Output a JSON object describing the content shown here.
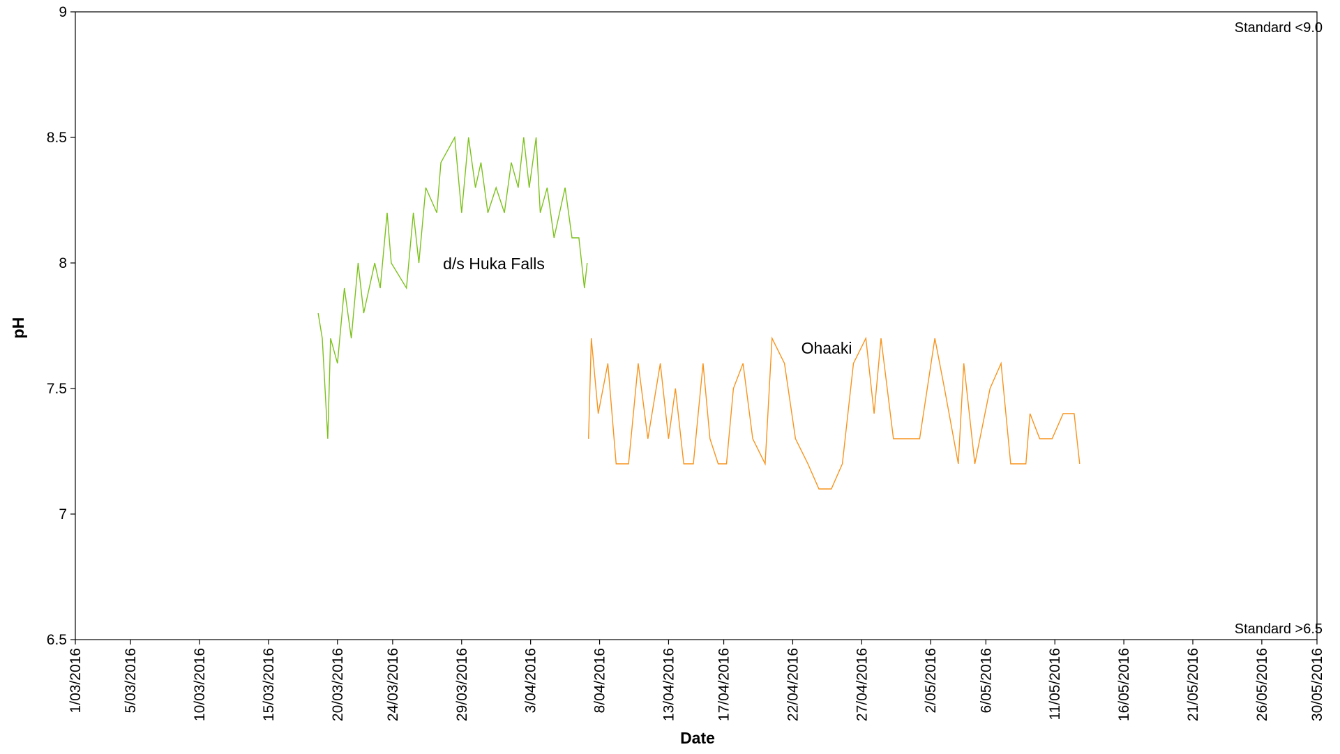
{
  "chart_data": {
    "type": "line",
    "xlabel": "Date",
    "ylabel": "pH",
    "annotations": [
      "d/s Huka Falls",
      "Ohaaki",
      "Standard <9.0",
      "Standard >6.5"
    ],
    "xlim": [
      42430,
      42520
    ],
    "xticks": [
      {
        "value": 42430,
        "label": "1/03/2016"
      },
      {
        "value": 42434,
        "label": "5/03/2016"
      },
      {
        "value": 42439,
        "label": "10/03/2016"
      },
      {
        "value": 42444,
        "label": "15/03/2016"
      },
      {
        "value": 42449,
        "label": "20/03/2016"
      },
      {
        "value": 42453,
        "label": "24/03/2016"
      },
      {
        "value": 42458,
        "label": "29/03/2016"
      },
      {
        "value": 42463,
        "label": "3/04/2016"
      },
      {
        "value": 42468,
        "label": "8/04/2016"
      },
      {
        "value": 42473,
        "label": "13/04/2016"
      },
      {
        "value": 42477,
        "label": "17/04/2016"
      },
      {
        "value": 42482,
        "label": "22/04/2016"
      },
      {
        "value": 42487,
        "label": "27/04/2016"
      },
      {
        "value": 42492,
        "label": "2/05/2016"
      },
      {
        "value": 42496,
        "label": "6/05/2016"
      },
      {
        "value": 42501,
        "label": "11/05/2016"
      },
      {
        "value": 42506,
        "label": "16/05/2016"
      },
      {
        "value": 42511,
        "label": "21/05/2016"
      },
      {
        "value": 42516,
        "label": "26/05/2016"
      },
      {
        "value": 42520,
        "label": "30/05/2016"
      }
    ],
    "ylim": [
      6.5,
      9
    ],
    "yticks": [
      6.5,
      7,
      7.5,
      8,
      8.5,
      9
    ],
    "grid": false,
    "series": [
      {
        "name": "d/s Huka Falls",
        "color": "#7cc11c",
        "x": [
          42447.6,
          42447.9,
          42448.3,
          42448.5,
          42449.0,
          42449.5,
          42450.0,
          42450.5,
          42450.9,
          42451.7,
          42452.1,
          42452.6,
          42452.9,
          42454.0,
          42454.5,
          42454.9,
          42455.4,
          42456.2,
          42456.5,
          42457.5,
          42458.0,
          42458.5,
          42459.0,
          42459.4,
          42459.9,
          42460.5,
          42461.1,
          42461.6,
          42462.1,
          42462.5,
          42462.9,
          42463.4,
          42463.7,
          42464.2,
          42464.7,
          42465.5,
          42466.0,
          42466.5,
          42466.9,
          42467.1
        ],
        "values": [
          7.8,
          7.7,
          7.3,
          7.7,
          7.6,
          7.9,
          7.7,
          8.0,
          7.8,
          8.0,
          7.9,
          8.2,
          8.0,
          7.9,
          8.2,
          8.0,
          8.3,
          8.2,
          8.4,
          8.5,
          8.2,
          8.5,
          8.3,
          8.4,
          8.2,
          8.3,
          8.2,
          8.4,
          8.3,
          8.5,
          8.3,
          8.5,
          8.2,
          8.3,
          8.1,
          8.3,
          8.1,
          8.1,
          7.9,
          8.0
        ]
      },
      {
        "name": "Ohaaki",
        "color": "#f7941d",
        "x": [
          42467.2,
          42467.4,
          42467.9,
          42468.6,
          42469.2,
          42470.1,
          42470.8,
          42471.5,
          42472.4,
          42473.0,
          42473.5,
          42474.1,
          42474.8,
          42475.5,
          42476.0,
          42476.6,
          42477.2,
          42477.7,
          42478.4,
          42479.1,
          42480.0,
          42480.5,
          42481.4,
          42482.2,
          42483.1,
          42483.9,
          42484.8,
          42485.6,
          42486.4,
          42487.3,
          42487.9,
          42488.4,
          42489.3,
          42490.2,
          42491.2,
          42492.3,
          42493.0,
          42494.0,
          42494.4,
          42495.2,
          42496.3,
          42497.1,
          42497.8,
          42498.9,
          42499.2,
          42499.9,
          42500.8,
          42501.6,
          42502.4,
          42502.8
        ],
        "values": [
          7.3,
          7.7,
          7.4,
          7.6,
          7.2,
          7.2,
          7.6,
          7.3,
          7.6,
          7.3,
          7.5,
          7.2,
          7.2,
          7.6,
          7.3,
          7.2,
          7.2,
          7.5,
          7.6,
          7.3,
          7.2,
          7.7,
          7.6,
          7.3,
          7.2,
          7.1,
          7.1,
          7.2,
          7.6,
          7.7,
          7.4,
          7.7,
          7.3,
          7.3,
          7.3,
          7.7,
          7.5,
          7.2,
          7.6,
          7.2,
          7.5,
          7.6,
          7.2,
          7.2,
          7.4,
          7.3,
          7.3,
          7.4,
          7.4,
          7.2
        ]
      }
    ]
  }
}
